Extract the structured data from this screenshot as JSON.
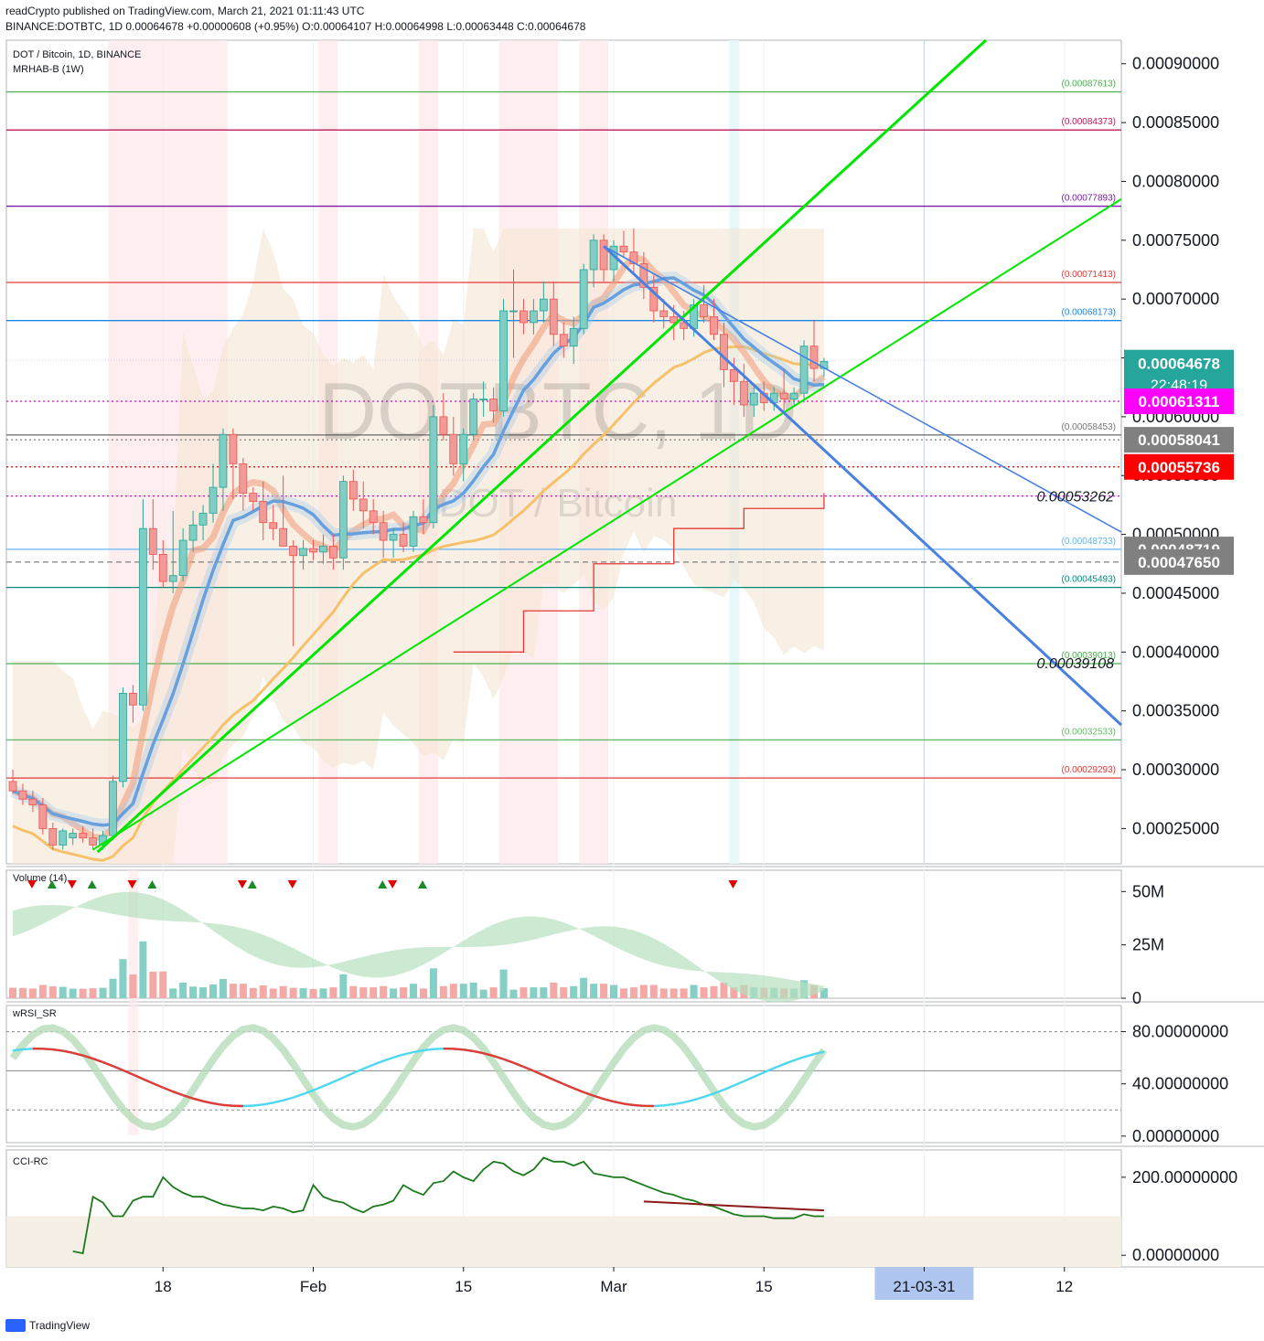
{
  "header": {
    "line1": "readCrypto published on TradingView.com, March 21, 2021 01:11:43 UTC",
    "line2": "BINANCE:DOTBTC, 1D  0.00064678  +0.00000608 (+0.95%)  O:0.00064107  H:0.00064998  L:0.00063448  C:0.00064678"
  },
  "legend": {
    "symbol": "DOT / Bitcoin, 1D, BINANCE",
    "indicator": "MRHAB-B (1W)",
    "watermark_main": "DOTBTC, 1D",
    "watermark_sub": "DOT / Bitcoin"
  },
  "colors": {
    "up": "#26a69a",
    "down": "#ef5350",
    "price_tag": "#26a69a",
    "magenta_tag": "#ff00ff",
    "red_tag": "#ff0000",
    "grey_tag": "#808080",
    "trend_green": "#00e600",
    "trend_blue": "#4a80e0",
    "date_highlight": "#aec6f0"
  },
  "chart_data": [
    {
      "type": "candlestick",
      "pane": "price",
      "x_ticks": [
        "18",
        "Feb",
        "15",
        "Mar",
        "15",
        "21-03-31",
        "12"
      ],
      "y_ticks": [
        "0.00090000",
        "0.00085000",
        "0.00080000",
        "0.00075000",
        "0.00070000",
        "0.00065000",
        "0.00060000",
        "0.00055000",
        "0.00050000",
        "0.00045000",
        "0.00040000",
        "0.00035000",
        "0.00030000",
        "0.00025000"
      ],
      "ylim": [
        0.00022,
        0.00092
      ],
      "last_price": "0.00064678",
      "countdown": "22:48:19",
      "tags": [
        "0.00061311",
        "0.00058041",
        "0.00055736",
        "0.00048719",
        "0.00047650"
      ],
      "horizontal_levels": [
        {
          "value": "0.00087613",
          "color": "#4caf50"
        },
        {
          "value": "0.00084373",
          "color": "#c2185b"
        },
        {
          "value": "0.00077893",
          "color": "#7b1fa2"
        },
        {
          "value": "0.00071413",
          "color": "#e53935"
        },
        {
          "value": "0.00068173",
          "color": "#1e88e5"
        },
        {
          "value": "0.00058453",
          "color": "#757575"
        },
        {
          "value": "0.00048733",
          "color": "#64b5f6"
        },
        {
          "value": "0.00045493",
          "color": "#00897b"
        },
        {
          "value": "0.00039013",
          "color": "#4caf50"
        },
        {
          "value": "0.00032533",
          "color": "#66bb6a"
        },
        {
          "value": "0.00029293",
          "color": "#e53935"
        }
      ],
      "annotations": [
        "0.00053262",
        "0.00039108"
      ],
      "candles": [
        {
          "o": 0.00029,
          "h": 0.0003,
          "l": 0.00028,
          "c": 0.000282
        },
        {
          "o": 0.000282,
          "h": 0.000288,
          "l": 0.00027,
          "c": 0.000275
        },
        {
          "o": 0.000275,
          "h": 0.000282,
          "l": 0.000264,
          "c": 0.00027
        },
        {
          "o": 0.00027,
          "h": 0.000276,
          "l": 0.000245,
          "c": 0.00025
        },
        {
          "o": 0.00025,
          "h": 0.000255,
          "l": 0.000232,
          "c": 0.000236
        },
        {
          "o": 0.000236,
          "h": 0.00025,
          "l": 0.000232,
          "c": 0.000248
        },
        {
          "o": 0.000242,
          "h": 0.00025,
          "l": 0.000236,
          "c": 0.000246
        },
        {
          "o": 0.000246,
          "h": 0.000252,
          "l": 0.000238,
          "c": 0.000242
        },
        {
          "o": 0.000242,
          "h": 0.00025,
          "l": 0.000232,
          "c": 0.000236
        },
        {
          "o": 0.000236,
          "h": 0.000248,
          "l": 0.000232,
          "c": 0.000244
        },
        {
          "o": 0.000244,
          "h": 0.000295,
          "l": 0.00024,
          "c": 0.00029
        },
        {
          "o": 0.00029,
          "h": 0.00037,
          "l": 0.000285,
          "c": 0.000365
        },
        {
          "o": 0.000365,
          "h": 0.000372,
          "l": 0.00034,
          "c": 0.000355
        },
        {
          "o": 0.000355,
          "h": 0.00053,
          "l": 0.00035,
          "c": 0.000505
        },
        {
          "o": 0.000505,
          "h": 0.00053,
          "l": 0.00047,
          "c": 0.000483
        },
        {
          "o": 0.000483,
          "h": 0.000495,
          "l": 0.000455,
          "c": 0.00046
        },
        {
          "o": 0.00046,
          "h": 0.00052,
          "l": 0.00045,
          "c": 0.000465
        },
        {
          "o": 0.000465,
          "h": 0.000505,
          "l": 0.00046,
          "c": 0.000495
        },
        {
          "o": 0.000495,
          "h": 0.00052,
          "l": 0.000485,
          "c": 0.000508
        },
        {
          "o": 0.000508,
          "h": 0.000525,
          "l": 0.000495,
          "c": 0.000518
        },
        {
          "o": 0.000518,
          "h": 0.00056,
          "l": 0.00051,
          "c": 0.00054
        },
        {
          "o": 0.00054,
          "h": 0.00059,
          "l": 0.00052,
          "c": 0.000585
        },
        {
          "o": 0.000585,
          "h": 0.00059,
          "l": 0.00053,
          "c": 0.00056
        },
        {
          "o": 0.00056,
          "h": 0.000565,
          "l": 0.00052,
          "c": 0.000535
        },
        {
          "o": 0.000535,
          "h": 0.00054,
          "l": 0.00052,
          "c": 0.000528
        },
        {
          "o": 0.000528,
          "h": 0.000545,
          "l": 0.000495,
          "c": 0.00051
        },
        {
          "o": 0.00051,
          "h": 0.000525,
          "l": 0.000495,
          "c": 0.000505
        },
        {
          "o": 0.000505,
          "h": 0.00055,
          "l": 0.00049,
          "c": 0.00049
        },
        {
          "o": 0.00049,
          "h": 0.000495,
          "l": 0.000405,
          "c": 0.000482
        },
        {
          "o": 0.000482,
          "h": 0.000495,
          "l": 0.00047,
          "c": 0.000488
        },
        {
          "o": 0.000488,
          "h": 0.000495,
          "l": 0.000478,
          "c": 0.000485
        },
        {
          "o": 0.000485,
          "h": 0.0005,
          "l": 0.000475,
          "c": 0.00049
        },
        {
          "o": 0.00049,
          "h": 0.0005,
          "l": 0.00047,
          "c": 0.00048
        },
        {
          "o": 0.00048,
          "h": 0.00055,
          "l": 0.00047,
          "c": 0.000545
        },
        {
          "o": 0.000545,
          "h": 0.000555,
          "l": 0.00052,
          "c": 0.00053
        },
        {
          "o": 0.00053,
          "h": 0.000545,
          "l": 0.000505,
          "c": 0.00052
        },
        {
          "o": 0.00052,
          "h": 0.00053,
          "l": 0.0005,
          "c": 0.00051
        },
        {
          "o": 0.00051,
          "h": 0.00052,
          "l": 0.00048,
          "c": 0.000495
        },
        {
          "o": 0.000495,
          "h": 0.000505,
          "l": 0.00048,
          "c": 0.0005
        },
        {
          "o": 0.0005,
          "h": 0.00051,
          "l": 0.000485,
          "c": 0.00049
        },
        {
          "o": 0.00049,
          "h": 0.00052,
          "l": 0.000485,
          "c": 0.000515
        },
        {
          "o": 0.000515,
          "h": 0.00053,
          "l": 0.0005,
          "c": 0.00051
        },
        {
          "o": 0.00051,
          "h": 0.00061,
          "l": 0.000505,
          "c": 0.0006
        },
        {
          "o": 0.0006,
          "h": 0.00062,
          "l": 0.00058,
          "c": 0.000585
        },
        {
          "o": 0.000585,
          "h": 0.0006,
          "l": 0.00055,
          "c": 0.00056
        },
        {
          "o": 0.00056,
          "h": 0.00059,
          "l": 0.000545,
          "c": 0.000585
        },
        {
          "o": 0.000585,
          "h": 0.00062,
          "l": 0.00058,
          "c": 0.000615
        },
        {
          "o": 0.000615,
          "h": 0.00063,
          "l": 0.0006,
          "c": 0.000615
        },
        {
          "o": 0.000615,
          "h": 0.000625,
          "l": 0.000595,
          "c": 0.000605
        },
        {
          "o": 0.000605,
          "h": 0.0007,
          "l": 0.0006,
          "c": 0.00069
        },
        {
          "o": 0.00069,
          "h": 0.000725,
          "l": 0.00065,
          "c": 0.00069
        },
        {
          "o": 0.00069,
          "h": 0.0007,
          "l": 0.00067,
          "c": 0.00068
        },
        {
          "o": 0.00068,
          "h": 0.0007,
          "l": 0.00067,
          "c": 0.00069
        },
        {
          "o": 0.00069,
          "h": 0.000715,
          "l": 0.00068,
          "c": 0.0007
        },
        {
          "o": 0.0007,
          "h": 0.000715,
          "l": 0.00066,
          "c": 0.00067
        },
        {
          "o": 0.00067,
          "h": 0.00068,
          "l": 0.00065,
          "c": 0.00066
        },
        {
          "o": 0.00066,
          "h": 0.000685,
          "l": 0.000645,
          "c": 0.000675
        },
        {
          "o": 0.000675,
          "h": 0.00073,
          "l": 0.00067,
          "c": 0.000725
        },
        {
          "o": 0.000725,
          "h": 0.000755,
          "l": 0.00071,
          "c": 0.00075
        },
        {
          "o": 0.00075,
          "h": 0.000755,
          "l": 0.000715,
          "c": 0.000725
        },
        {
          "o": 0.000725,
          "h": 0.00075,
          "l": 0.000715,
          "c": 0.000745
        },
        {
          "o": 0.000745,
          "h": 0.000758,
          "l": 0.000735,
          "c": 0.00074
        },
        {
          "o": 0.00074,
          "h": 0.00076,
          "l": 0.00072,
          "c": 0.00073
        },
        {
          "o": 0.00073,
          "h": 0.00074,
          "l": 0.0007,
          "c": 0.00071
        },
        {
          "o": 0.00071,
          "h": 0.00072,
          "l": 0.00068,
          "c": 0.00069
        },
        {
          "o": 0.00069,
          "h": 0.0007,
          "l": 0.000675,
          "c": 0.000685
        },
        {
          "o": 0.000685,
          "h": 0.000695,
          "l": 0.000665,
          "c": 0.00068
        },
        {
          "o": 0.00068,
          "h": 0.00069,
          "l": 0.000665,
          "c": 0.000675
        },
        {
          "o": 0.000675,
          "h": 0.0007,
          "l": 0.000668,
          "c": 0.000695
        },
        {
          "o": 0.000695,
          "h": 0.000712,
          "l": 0.00068,
          "c": 0.000685
        },
        {
          "o": 0.000685,
          "h": 0.0007,
          "l": 0.000665,
          "c": 0.00067
        },
        {
          "o": 0.00067,
          "h": 0.00068,
          "l": 0.000625,
          "c": 0.00064
        },
        {
          "o": 0.00064,
          "h": 0.00065,
          "l": 0.00061,
          "c": 0.00063
        },
        {
          "o": 0.00063,
          "h": 0.000645,
          "l": 0.0006,
          "c": 0.00061
        },
        {
          "o": 0.00061,
          "h": 0.000625,
          "l": 0.0006,
          "c": 0.00062
        },
        {
          "o": 0.00062,
          "h": 0.00063,
          "l": 0.000605,
          "c": 0.000612
        },
        {
          "o": 0.000612,
          "h": 0.000625,
          "l": 0.000605,
          "c": 0.00062
        },
        {
          "o": 0.00062,
          "h": 0.00064,
          "l": 0.000605,
          "c": 0.000615
        },
        {
          "o": 0.000615,
          "h": 0.000625,
          "l": 0.00061,
          "c": 0.00062
        },
        {
          "o": 0.00062,
          "h": 0.000665,
          "l": 0.000612,
          "c": 0.00066
        },
        {
          "o": 0.00066,
          "h": 0.000682,
          "l": 0.00063,
          "c": 0.000641
        },
        {
          "o": 0.000641,
          "h": 0.00065,
          "l": 0.000634,
          "c": 0.000647
        }
      ]
    },
    {
      "type": "bar",
      "pane": "volume",
      "title": "Volume (14)",
      "y_ticks": [
        "50M",
        "25M",
        "0"
      ],
      "ylim": [
        0,
        60
      ]
    },
    {
      "type": "line",
      "pane": "wrsi",
      "title": "wRSI_SR",
      "y_ticks": [
        "80.00000000",
        "40.00000000",
        "0.00000000"
      ],
      "ylim": [
        -5,
        100
      ]
    },
    {
      "type": "line",
      "pane": "cci",
      "title": "CCI-RC",
      "y_ticks": [
        "200.00000000",
        "0.00000000"
      ],
      "ylim": [
        -30,
        270
      ],
      "series": [
        {
          "values": [
            10,
            5,
            150,
            135,
            100,
            100,
            140,
            150,
            150,
            200,
            175,
            160,
            150,
            150,
            140,
            130,
            125,
            120,
            120,
            115,
            125,
            120,
            110,
            115,
            180,
            150,
            140,
            135,
            120,
            110,
            125,
            130,
            140,
            180,
            165,
            155,
            185,
            190,
            215,
            200,
            190,
            220,
            240,
            235,
            215,
            205,
            220,
            250,
            240,
            240,
            230,
            240,
            210,
            205,
            200,
            200,
            190,
            180,
            170,
            160,
            155,
            145,
            140,
            130,
            125,
            115,
            105,
            100,
            100,
            100,
            95,
            95,
            95,
            105,
            100,
            100
          ]
        }
      ]
    }
  ],
  "footer": {
    "brand": "TradingView"
  }
}
